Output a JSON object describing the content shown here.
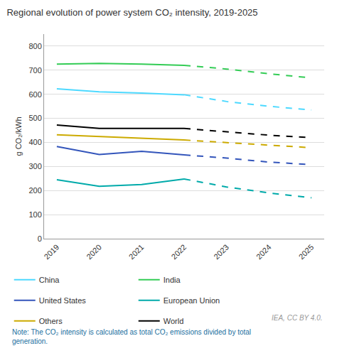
{
  "chart_data": {
    "type": "line",
    "title": "Regional evolution of power system CO₂ intensity, 2019-2025",
    "y_label": "g CO₂/kWh",
    "annotations": [
      "IEA, CC BY 4.0.",
      "Note: The CO₂ intensity is calculated as total CO₂ emissions divided by total\ngeneration."
    ],
    "series": [
      {
        "name": "China",
        "color": "#4DD9FF",
        "line_style": "solid",
        "x": [
          2019,
          2020,
          2021,
          2022
        ],
        "values": [
          623,
          610,
          605,
          598
        ]
      },
      {
        "name": "China",
        "color": "#4DD9FF",
        "line_style": "dashed",
        "x": [
          2022,
          2023,
          2024,
          2025
        ],
        "values": [
          598,
          570,
          550,
          535
        ]
      },
      {
        "name": "India",
        "color": "#33CC55",
        "line_style": "solid",
        "x": [
          2019,
          2020,
          2021,
          2022
        ],
        "values": [
          725,
          728,
          725,
          720
        ]
      },
      {
        "name": "India",
        "color": "#33CC55",
        "line_style": "dashed",
        "x": [
          2022,
          2023,
          2024,
          2025
        ],
        "values": [
          720,
          705,
          685,
          668
        ]
      },
      {
        "name": "United States",
        "color": "#3355BB",
        "line_style": "solid",
        "x": [
          2019,
          2020,
          2021,
          2022
        ],
        "values": [
          383,
          350,
          363,
          348
        ]
      },
      {
        "name": "United States",
        "color": "#3355BB",
        "line_style": "dashed",
        "x": [
          2022,
          2023,
          2024,
          2025
        ],
        "values": [
          348,
          335,
          318,
          308
        ]
      },
      {
        "name": "European Union",
        "color": "#00AAAA",
        "line_style": "solid",
        "x": [
          2019,
          2020,
          2021,
          2022
        ],
        "values": [
          245,
          218,
          225,
          248
        ]
      },
      {
        "name": "European Union",
        "color": "#00AAAA",
        "line_style": "dashed",
        "x": [
          2022,
          2023,
          2024,
          2025
        ],
        "values": [
          248,
          215,
          190,
          170
        ]
      },
      {
        "name": "Others",
        "color": "#CCAA00",
        "line_style": "solid",
        "x": [
          2019,
          2020,
          2021,
          2022
        ],
        "values": [
          432,
          425,
          418,
          410
        ]
      },
      {
        "name": "Others",
        "color": "#CCAA00",
        "line_style": "dashed",
        "x": [
          2022,
          2023,
          2024,
          2025
        ],
        "values": [
          410,
          400,
          388,
          378
        ]
      },
      {
        "name": "World",
        "color": "#000000",
        "line_style": "solid",
        "x": [
          2019,
          2020,
          2021,
          2022
        ],
        "values": [
          472,
          458,
          458,
          458
        ]
      },
      {
        "name": "World",
        "color": "#000000",
        "line_style": "dashed",
        "x": [
          2022,
          2023,
          2024,
          2025
        ],
        "values": [
          458,
          443,
          430,
          420
        ]
      }
    ],
    "xlim": [
      2018.7,
      2025.3
    ],
    "xticks": [
      2019,
      2020,
      2021,
      2022,
      2023,
      2024,
      2025
    ],
    "ylim": [
      0,
      850
    ],
    "yticks": [
      0,
      100,
      200,
      300,
      400,
      500,
      600,
      700,
      800
    ],
    "grid": "y",
    "legend": "bottom"
  }
}
